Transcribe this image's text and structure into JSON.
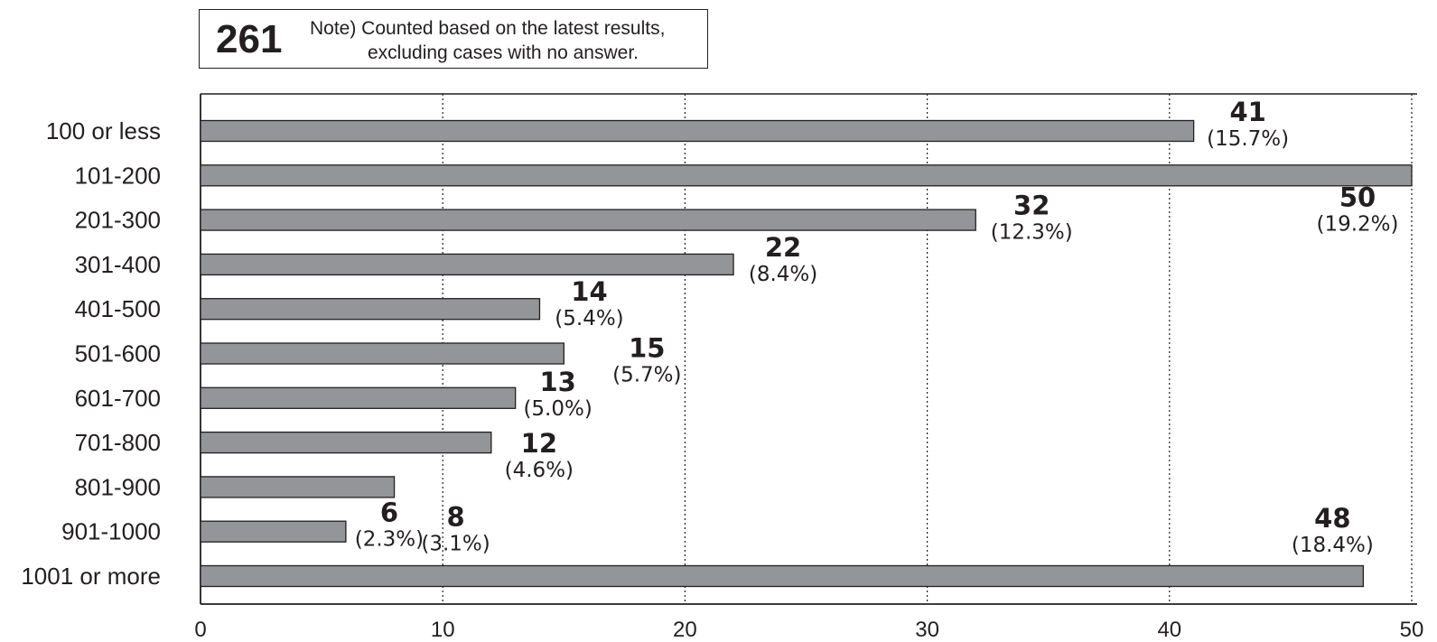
{
  "note": {
    "total": "261",
    "line1": "Note) Counted based on the latest results,",
    "line2": "excluding cases with no answer."
  },
  "chart_data": {
    "type": "bar",
    "orientation": "horizontal",
    "categories": [
      "100 or less",
      "101-200",
      "201-300",
      "301-400",
      "401-500",
      "501-600",
      "601-700",
      "701-800",
      "801-900",
      "901-1000",
      "1001 or more"
    ],
    "values": [
      41,
      50,
      32,
      22,
      14,
      15,
      13,
      12,
      8,
      6,
      48
    ],
    "percent_labels": [
      "(15.7%)",
      "(19.2%)",
      "(12.3%)",
      "(8.4%)",
      "(5.4%)",
      "(5.7%)",
      "(5.0%)",
      "(4.6%)",
      "(3.1%)",
      "(2.3%)",
      "(18.4%)"
    ],
    "xlim": [
      0,
      50
    ],
    "xticks": [
      0,
      10,
      20,
      30,
      40,
      50
    ],
    "grid": "vertical dotted",
    "bar_color": "#939598",
    "bar_edge_color": "#231f20"
  }
}
